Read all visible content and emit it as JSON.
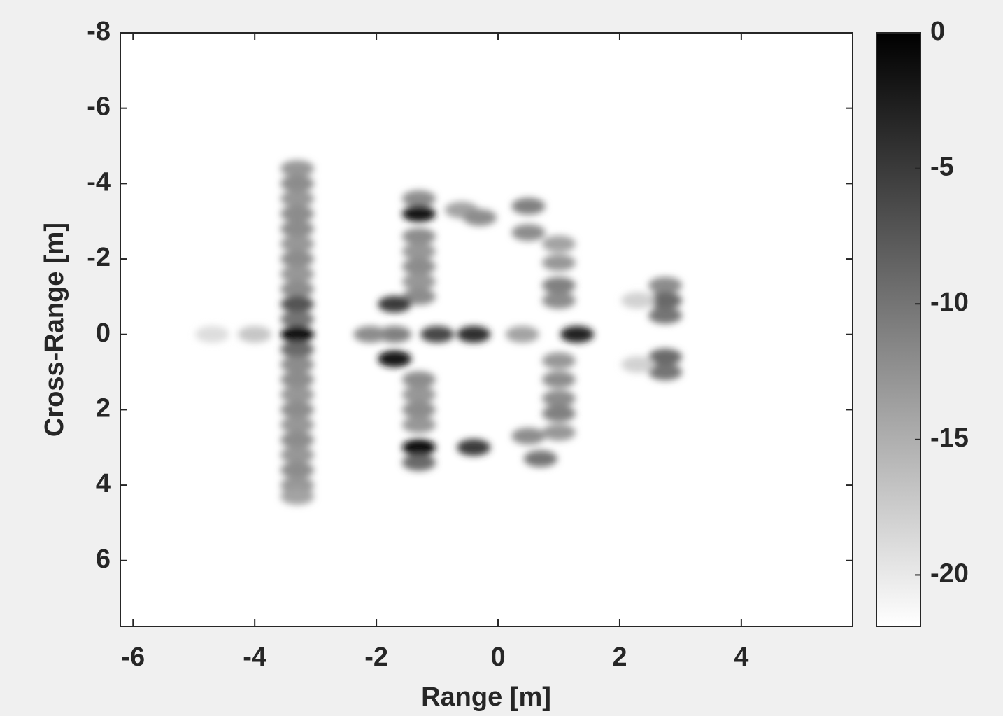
{
  "chart_data": {
    "type": "image",
    "xlabel": "Range [m]",
    "ylabel": "Cross-Range [m]",
    "xlim": [
      -6.21,
      5.83
    ],
    "ylim": [
      -8,
      7.75
    ],
    "y_reversed": true,
    "xticks": [
      -6,
      -4,
      -2,
      0,
      2,
      4
    ],
    "yticks": [
      -8,
      -6,
      -4,
      -2,
      0,
      2,
      4,
      6
    ],
    "colormap": "gray-reversed",
    "clim": [
      -21.9,
      0
    ],
    "cticks": [
      0,
      -5,
      -10,
      -15,
      -20
    ],
    "x": [
      -3.3,
      -3.3,
      -3.3,
      -3.3,
      -3.3,
      -3.3,
      -3.3,
      -3.3,
      -3.3,
      -3.3,
      -3.3,
      -3.3,
      -3.3,
      -3.3,
      -3.3,
      -3.3,
      -3.3,
      -3.3,
      -3.3,
      -3.3,
      -3.3,
      -3.3,
      -3.3,
      -1.3,
      -1.3,
      -1.3,
      -1.3,
      -1.3,
      -1.3,
      -1.3,
      -1.3,
      -1.3,
      -1.3,
      -1.3,
      -1.3,
      -1.3,
      -1.7,
      -1.7,
      -1.7,
      -2.1,
      -1.0,
      -0.4,
      0.4,
      1.3,
      -0.4,
      -0.6,
      -0.3,
      0.5,
      0.5,
      0.5,
      0.7,
      1.0,
      1.0,
      1.0,
      1.0,
      1.0,
      1.0,
      1.0,
      1.0,
      1.0,
      2.75,
      2.75,
      2.75,
      2.75,
      2.75,
      -4.7,
      -4.0,
      2.3,
      2.3
    ],
    "y": [
      -4.4,
      -4.0,
      -3.6,
      -3.2,
      -2.8,
      -2.4,
      -2.0,
      -1.6,
      -1.2,
      -0.8,
      -0.4,
      0,
      0.4,
      0.8,
      1.2,
      1.6,
      2.0,
      2.4,
      2.8,
      3.2,
      3.6,
      4.0,
      4.3,
      -3.6,
      -3.2,
      -2.6,
      -2.2,
      -1.8,
      -1.4,
      -1.0,
      1.2,
      1.6,
      2.0,
      2.4,
      3.0,
      3.4,
      -0.8,
      0.65,
      0,
      0,
      0,
      0,
      0,
      0,
      3.0,
      -3.3,
      -3.1,
      -3.4,
      -2.7,
      2.7,
      3.3,
      -2.4,
      -1.9,
      -1.3,
      -0.9,
      0.7,
      1.2,
      1.7,
      2.1,
      2.6,
      -1.3,
      -0.9,
      -0.5,
      0.6,
      1.0,
      0,
      0,
      -0.9,
      0.8
    ],
    "values": [
      -13,
      -12,
      -13,
      -12,
      -12,
      -13,
      -12,
      -13,
      -12,
      -7,
      -10,
      -1,
      -9,
      -12,
      -12,
      -13,
      -12,
      -13,
      -12,
      -13,
      -12,
      -13,
      -14,
      -12,
      -2,
      -12,
      -13,
      -12,
      -13,
      -12,
      -12,
      -13,
      -12,
      -13,
      -1,
      -9,
      -5,
      -2,
      -11,
      -12,
      -6,
      -4,
      -14,
      -3,
      -5,
      -14,
      -12,
      -11,
      -12,
      -12,
      -10,
      -14,
      -13,
      -11,
      -12,
      -13,
      -12,
      -12,
      -11,
      -13,
      -12,
      -9,
      -10,
      -9,
      -10,
      -19,
      -17,
      -18,
      -18
    ]
  }
}
